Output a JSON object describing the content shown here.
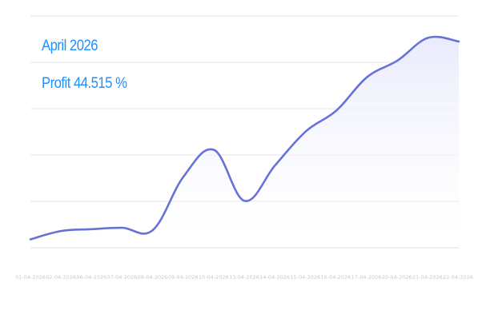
{
  "overlay": {
    "month_label": "April 2026",
    "profit_label": "Profit 44.515 %"
  },
  "colors": {
    "accent": "#1e90ff",
    "line": "#6672d6",
    "fill": "#e8eafb",
    "grid": "#e4e4e4",
    "tick_text": "#c9c9c9"
  },
  "chart_data": {
    "type": "area",
    "title": "",
    "xlabel": "",
    "ylabel": "",
    "grid": true,
    "ylim": [
      0,
      45
    ],
    "x": [
      "01-04-2026",
      "02-04-2026",
      "06-04-2026",
      "07-04-2026",
      "08-04-2026",
      "09-04-2026",
      "10-04-2026",
      "13-04-2026",
      "14-04-2026",
      "15-04-2026",
      "16-04-2026",
      "17-04-2026",
      "20-04-2026",
      "21-04-2026",
      "22-04-2026"
    ],
    "series": [
      {
        "values": [
          1.8,
          3.6,
          4.0,
          4.3,
          3.8,
          15.3,
          21.1,
          10.1,
          17.8,
          25.1,
          29.6,
          36.8,
          40.4,
          45.3,
          44.5
        ]
      }
    ]
  }
}
